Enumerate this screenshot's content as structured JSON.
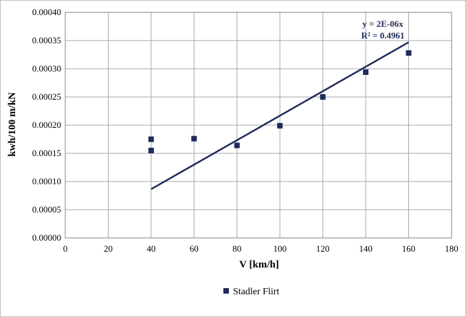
{
  "chart_data": {
    "type": "scatter",
    "title": "",
    "xlabel": "V [km/h]",
    "ylabel": "kwh/100 m/kN",
    "xlim": [
      0,
      180
    ],
    "ylim": [
      0,
      0.0004
    ],
    "x_ticks": [
      "0",
      "20",
      "40",
      "60",
      "80",
      "100",
      "120",
      "140",
      "160",
      "180"
    ],
    "y_ticks": [
      "0.00000",
      "0.00005",
      "0.00010",
      "0.00015",
      "0.00020",
      "0.00025",
      "0.00030",
      "0.00035",
      "0.00040"
    ],
    "grid": true,
    "legend_position": "bottom",
    "series": [
      {
        "name": "Stadler Flirt",
        "color": "#1f2b5a",
        "marker": "square",
        "points": [
          {
            "x": 40,
            "y": 0.000175
          },
          {
            "x": 40,
            "y": 0.000155
          },
          {
            "x": 60,
            "y": 0.000176
          },
          {
            "x": 80,
            "y": 0.000164
          },
          {
            "x": 100,
            "y": 0.000199
          },
          {
            "x": 120,
            "y": 0.00025
          },
          {
            "x": 140,
            "y": 0.000294
          },
          {
            "x": 160,
            "y": 0.000328
          }
        ]
      }
    ],
    "trendline": {
      "color": "#1f2b5a",
      "x": [
        40,
        160
      ],
      "y": [
        8.65e-05,
        0.000347
      ],
      "equation": "y = 2E-06x",
      "r_squared": "R² = 0.4961"
    }
  }
}
